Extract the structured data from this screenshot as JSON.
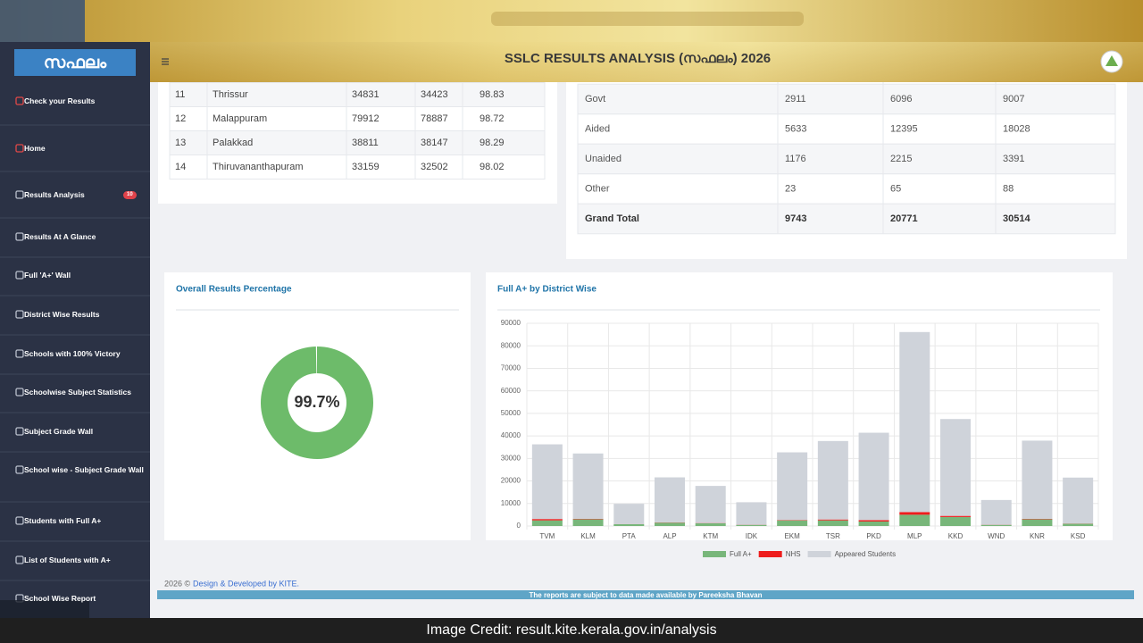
{
  "sidebar": {
    "logo": "സഫലം",
    "menu": [
      {
        "label": "Check your Results"
      },
      {
        "label": "Home"
      },
      {
        "label": "Results Analysis",
        "badge": 10
      },
      {
        "label": "Results At A Glance"
      },
      {
        "label": "Full 'A+' Wall"
      },
      {
        "label": "District Wise Results"
      },
      {
        "label": "Schools with 100% Victory"
      },
      {
        "label": "Schoolwise Subject Statistics"
      },
      {
        "label": "Subject Grade Wall"
      },
      {
        "label": "School wise - Subject Grade Wall"
      },
      {
        "label": "Students with Full A+"
      },
      {
        "label": "List of Students with A+"
      },
      {
        "label": "School Wise Report"
      }
    ]
  },
  "header": {
    "title": "SSLC RESULTS ANALYSIS (സഫലം) 2026"
  },
  "district_table": {
    "rows": [
      [
        "11",
        "Thrissur",
        "34831",
        "34423",
        "98.83"
      ],
      [
        "12",
        "Malappuram",
        "79912",
        "78887",
        "98.72"
      ],
      [
        "13",
        "Palakkad",
        "38811",
        "38147",
        "98.29"
      ],
      [
        "14",
        "Thiruvananthapuram",
        "33159",
        "32502",
        "98.02"
      ]
    ]
  },
  "management_table": {
    "rows": [
      [
        "Govt",
        "2911",
        "6096",
        "9007"
      ],
      [
        "Aided",
        "5633",
        "12395",
        "18028"
      ],
      [
        "Unaided",
        "1176",
        "2215",
        "3391"
      ],
      [
        "Other",
        "23",
        "65",
        "88"
      ],
      [
        "Grand Total",
        "9743",
        "20771",
        "30514"
      ]
    ]
  },
  "chart_data": [
    {
      "type": "doughnut",
      "title": "Overall Results Percentage",
      "values": [
        99.7
      ],
      "value_labels": [
        "99.7%"
      ],
      "color": "#6dbb6a"
    },
    {
      "type": "stacked_bar",
      "title": "Full A+ by District Wise",
      "categories": [
        "TVM",
        "KLM",
        "PTA",
        "ALP",
        "KTM",
        "IDK",
        "EKM",
        "TSR",
        "PKD",
        "MLP",
        "KKD",
        "WND",
        "KNR",
        "KSD"
      ],
      "series": [
        {
          "name": "Full A+",
          "color": "#78b67a",
          "values": [
            2500,
            3000,
            800,
            1500,
            1200,
            500,
            2500,
            2500,
            2000,
            5000,
            4000,
            500,
            3000,
            1000
          ]
        },
        {
          "name": "NHS",
          "color": "#ee1c1c",
          "values": [
            600,
            200,
            50,
            100,
            100,
            50,
            200,
            400,
            600,
            1200,
            500,
            50,
            200,
            100
          ]
        },
        {
          "name": "Appeared Students",
          "color": "#cfd3da",
          "values": [
            33159,
            29000,
            9000,
            20000,
            16500,
            10000,
            30000,
            34831,
            38811,
            79912,
            43000,
            11000,
            34700,
            20400
          ]
        }
      ],
      "ylim": [
        0,
        90000
      ],
      "yticks": [
        0,
        10000,
        20000,
        30000,
        40000,
        50000,
        60000,
        70000,
        80000,
        90000
      ],
      "grid": true,
      "legend": "bottom"
    }
  ],
  "footer": {
    "copyright": "2026 ©",
    "link": "Design & Developed by KITE.",
    "notice": "The reports are subject to data made available by Pareeksha Bhavan"
  },
  "credit": "Image Credit: result.kite.kerala.gov.in/analysis"
}
